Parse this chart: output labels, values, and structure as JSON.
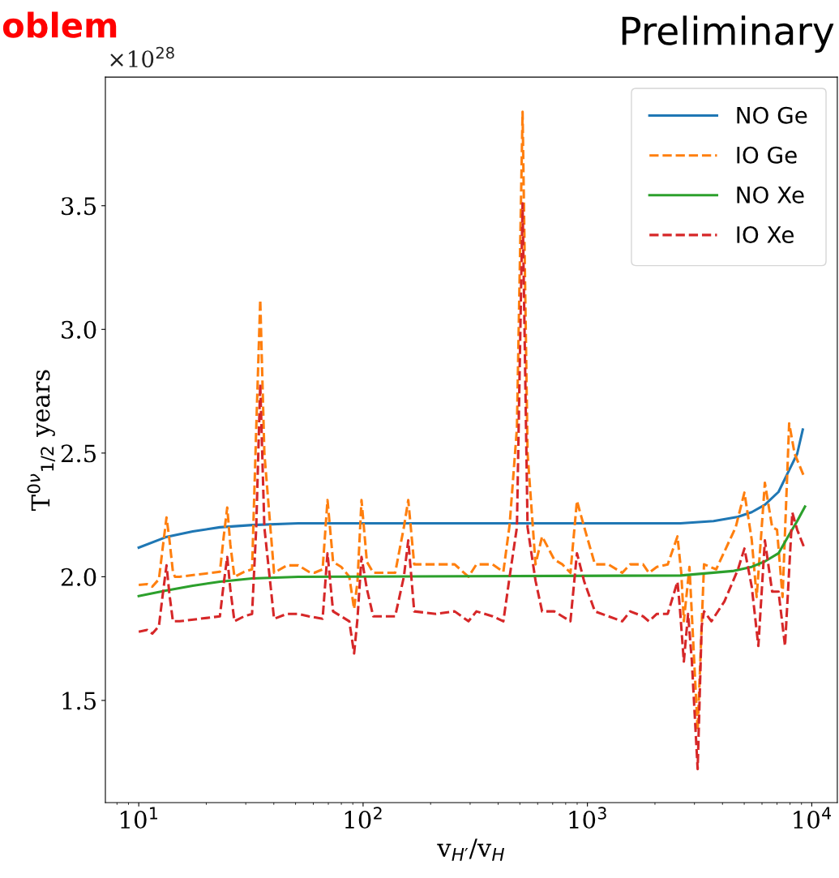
{
  "chart_data": {
    "type": "line",
    "xlabel": "v$_{H′}$/v$_{H}$",
    "ylabel": "T$^{0ν}$$_{1/2}$ years",
    "annotations": [
      "×10$^{28}$",
      "Preliminary",
      "oblem"
    ],
    "log": "x",
    "xlim": [
      7.1,
      13000
    ],
    "xticks": [
      {
        "value": 10,
        "label": "10$^{1}$"
      },
      {
        "value": 100,
        "label": "10$^{2}$"
      },
      {
        "value": 1000,
        "label": "10$^{3}$"
      },
      {
        "value": 10000,
        "label": "10$^{4}$"
      }
    ],
    "ylim": [
      1.087,
      4.02
    ],
    "yticks": [
      1.5,
      {
        "value": 2,
        "label": "2.0"
      },
      2.5,
      {
        "value": 3,
        "label": "3.0"
      },
      3.5
    ],
    "grid": false,
    "legend": "top right",
    "series": [
      {
        "name": "NO Ge",
        "color": "#1f77b4",
        "line_style": "solid",
        "x": [
          10,
          13.2,
          17.4,
          23.0,
          32.0,
          51.4,
          2600,
          3650,
          4690,
          5400,
          6180,
          7110,
          7930,
          8610,
          9120
        ],
        "values": [
          2.118,
          2.16,
          2.183,
          2.2,
          2.209,
          2.216,
          2.216,
          2.225,
          2.242,
          2.261,
          2.291,
          2.343,
          2.431,
          2.497,
          2.595
        ]
      },
      {
        "name": "IO Ge",
        "color": "#ff7f0e",
        "line_style": "dashed",
        "x": [
          10,
          10.9,
          11.5,
          12.3,
          12.8,
          13.3,
          13.7,
          14.2,
          14.5,
          15.2,
          23.0,
          23.9,
          24.8,
          25.6,
          26.7,
          29.5,
          32.0,
          33.4,
          34.8,
          36.3,
          40.1,
          45.8,
          51.4,
          57.3,
          60.7,
          66.0,
          69.4,
          73.5,
          79.9,
          86.8,
          91.2,
          94.4,
          98.4,
          104,
          111,
          139,
          152,
          159,
          169,
          211,
          256,
          295,
          320,
          378,
          422,
          450,
          485,
          514,
          541,
          587,
          628,
          711,
          773,
          840,
          898,
          968,
          1080,
          1240,
          1430,
          1550,
          1770,
          1880,
          2040,
          2280,
          2520,
          2620,
          2690,
          2850,
          2920,
          3100,
          3230,
          3310,
          3750,
          4580,
          5010,
          5400,
          5680,
          5930,
          6180,
          6660,
          7000,
          7410,
          7930,
          8390,
          9290
        ],
        "values": [
          1.967,
          1.97,
          1.96,
          1.99,
          2.12,
          2.24,
          2.15,
          2.02,
          2.0,
          2.0,
          2.02,
          2.16,
          2.28,
          2.13,
          2.0,
          2.02,
          2.03,
          2.6,
          3.12,
          2.5,
          2.016,
          2.046,
          2.046,
          2.02,
          2.016,
          2.03,
          2.31,
          2.06,
          2.04,
          2.0,
          1.87,
          1.98,
          2.31,
          2.06,
          2.016,
          2.016,
          2.2,
          2.31,
          2.05,
          2.05,
          2.05,
          2.0,
          2.05,
          2.05,
          2.02,
          2.21,
          2.6,
          3.88,
          2.5,
          2.05,
          2.163,
          2.07,
          2.05,
          2.016,
          2.307,
          2.2,
          2.05,
          2.05,
          2.016,
          2.05,
          2.05,
          2.016,
          2.04,
          2.05,
          2.163,
          2.016,
          1.82,
          2.04,
          1.85,
          1.38,
          1.8,
          2.05,
          2.03,
          2.2,
          2.34,
          2.15,
          1.918,
          2.15,
          2.38,
          2.2,
          2.19,
          1.918,
          2.62,
          2.497,
          2.4
        ]
      },
      {
        "name": "NO Xe",
        "color": "#2ca02c",
        "line_style": "solid",
        "x": [
          10,
          13.2,
          17.4,
          23.0,
          32.0,
          51.4,
          2600,
          4430,
          5400,
          6180,
          7110,
          7930,
          8610,
          9330
        ],
        "values": [
          1.922,
          1.944,
          1.964,
          1.98,
          1.993,
          2.0,
          2.005,
          2.023,
          2.04,
          2.062,
          2.095,
          2.17,
          2.225,
          2.284
        ]
      },
      {
        "name": "IO Xe",
        "color": "#d62728",
        "line_style": "dashed",
        "x": [
          10,
          10.9,
          11.5,
          12.3,
          12.8,
          13.3,
          13.7,
          14.2,
          15.2,
          23.0,
          23.9,
          24.8,
          25.6,
          26.7,
          29.5,
          32.0,
          33.4,
          34.8,
          36.3,
          40.1,
          45.8,
          51.4,
          57.3,
          66.0,
          69.4,
          73.5,
          79.9,
          86.8,
          91.2,
          94.4,
          98.4,
          104,
          111,
          139,
          152,
          159,
          169,
          211,
          256,
          295,
          320,
          378,
          422,
          450,
          485,
          514,
          541,
          587,
          628,
          711,
          773,
          840,
          898,
          968,
          1080,
          1240,
          1430,
          1550,
          1770,
          1880,
          2040,
          2280,
          2520,
          2580,
          2690,
          2810,
          2920,
          3100,
          3230,
          3310,
          3570,
          4080,
          4690,
          5010,
          5400,
          5780,
          6180,
          6660,
          7110,
          7600,
          8190,
          8610,
          9290
        ],
        "values": [
          1.778,
          1.785,
          1.77,
          1.8,
          1.93,
          2.046,
          1.93,
          1.82,
          1.82,
          1.84,
          1.97,
          2.08,
          1.95,
          1.82,
          1.84,
          1.85,
          2.2,
          2.78,
          2.2,
          1.83,
          1.85,
          1.85,
          1.84,
          1.83,
          2.095,
          1.86,
          1.84,
          1.82,
          1.69,
          1.83,
          2.08,
          1.95,
          1.84,
          1.84,
          2.0,
          2.147,
          1.86,
          1.85,
          1.86,
          1.82,
          1.86,
          1.84,
          1.82,
          2.0,
          2.2,
          3.51,
          2.2,
          1.984,
          1.86,
          1.86,
          1.84,
          1.82,
          2.095,
          1.98,
          1.86,
          1.84,
          1.82,
          1.86,
          1.84,
          1.82,
          1.85,
          1.85,
          1.98,
          1.88,
          1.657,
          1.85,
          1.66,
          1.222,
          1.8,
          1.86,
          1.82,
          1.9,
          2.03,
          2.114,
          1.96,
          1.72,
          2.147,
          1.94,
          1.94,
          1.72,
          2.26,
          2.19,
          2.114
        ]
      }
    ]
  }
}
